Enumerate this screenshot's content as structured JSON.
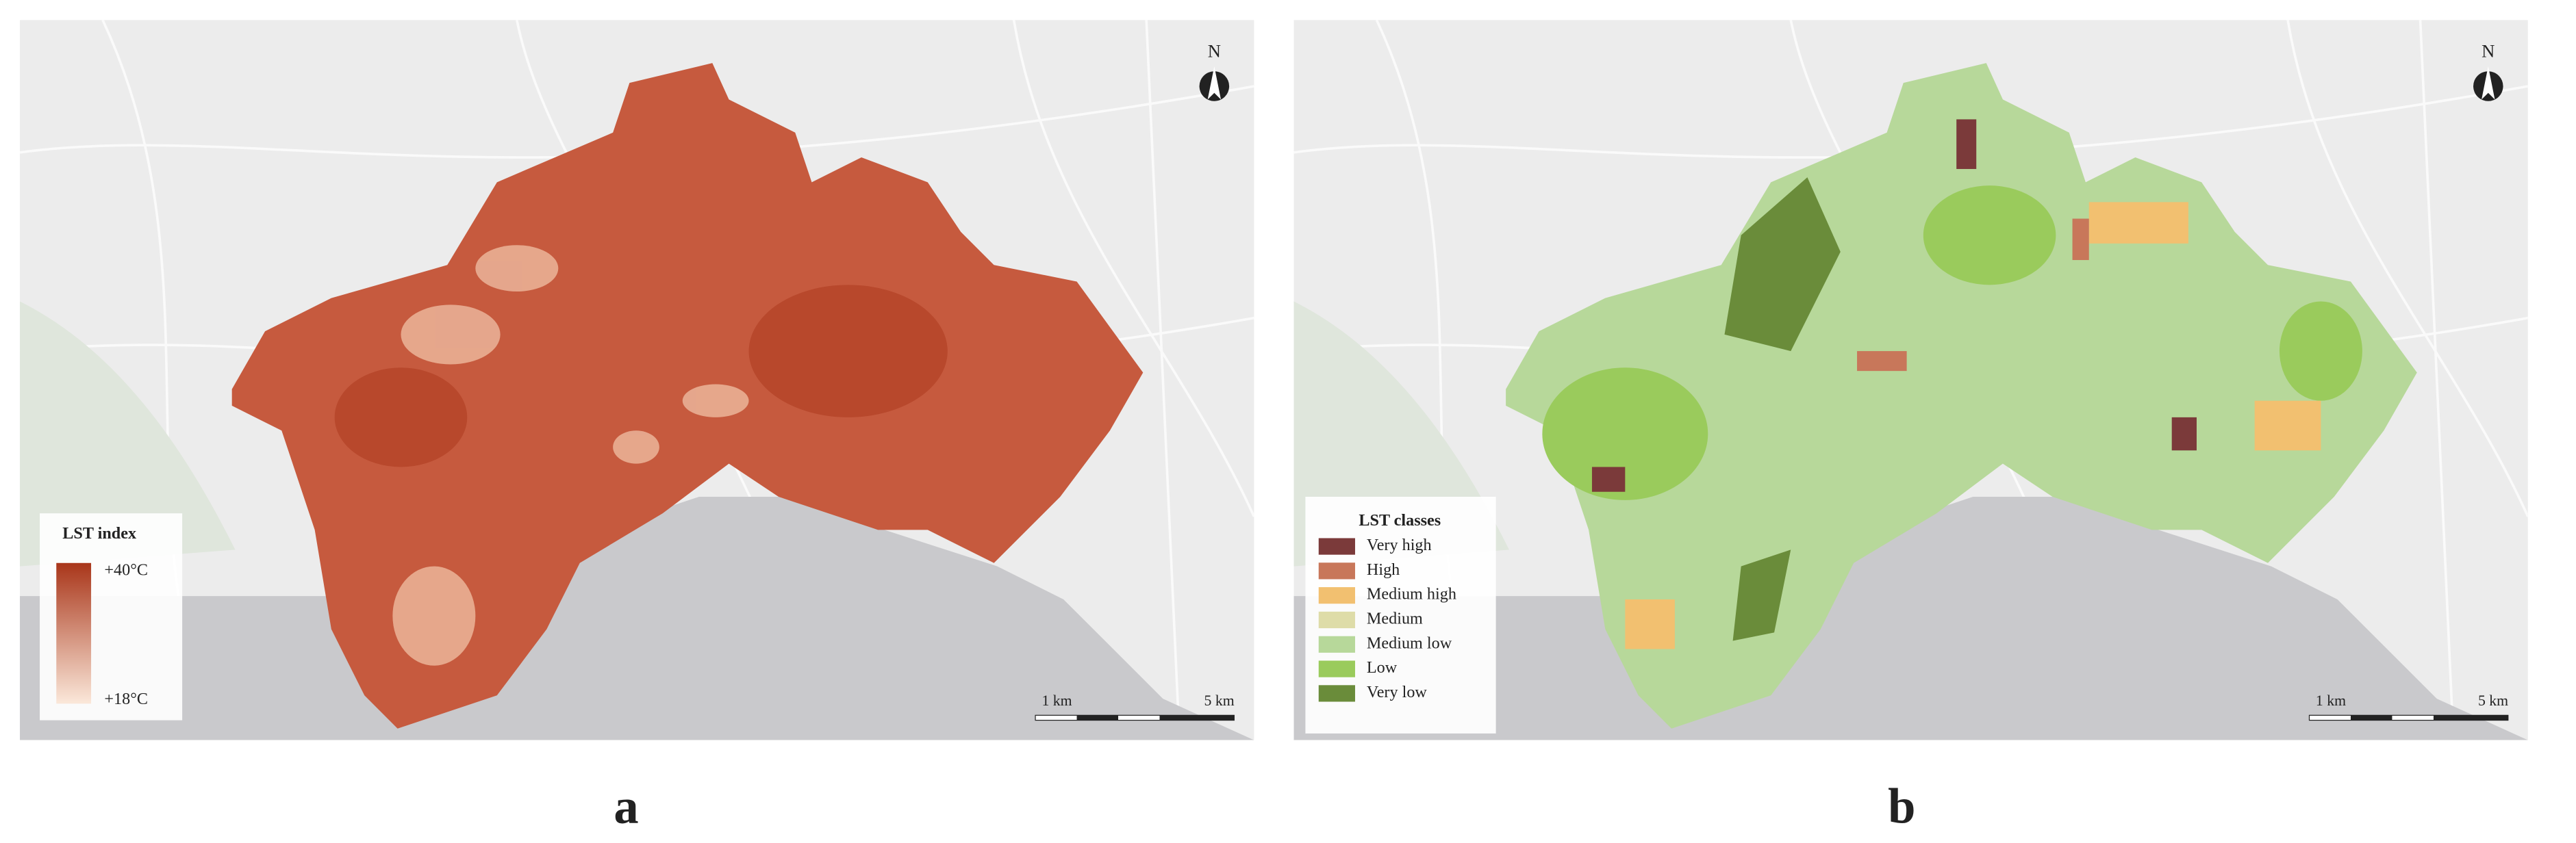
{
  "panels": [
    {
      "label": "a",
      "north": "N",
      "scale": [
        "1 km",
        "5 km"
      ],
      "legend": {
        "title": "LST index",
        "max_label": "+40°C",
        "min_label": "+18°C",
        "max_color": "#a9361a",
        "min_color": "#fbe8da"
      }
    },
    {
      "label": "b",
      "north": "N",
      "scale": [
        "1 km",
        "5 km"
      ],
      "legend": {
        "title": "LST classes",
        "items": [
          {
            "name": "Very high",
            "color": "#7b3a3a"
          },
          {
            "name": "High",
            "color": "#c8775a"
          },
          {
            "name": "Medium high",
            "color": "#f2c070"
          },
          {
            "name": "Medium",
            "color": "#dedca8"
          },
          {
            "name": "Medium low",
            "color": "#b7d89a"
          },
          {
            "name": "Low",
            "color": "#9acb5c"
          },
          {
            "name": "Very low",
            "color": "#6a8c3a"
          }
        ]
      }
    }
  ]
}
